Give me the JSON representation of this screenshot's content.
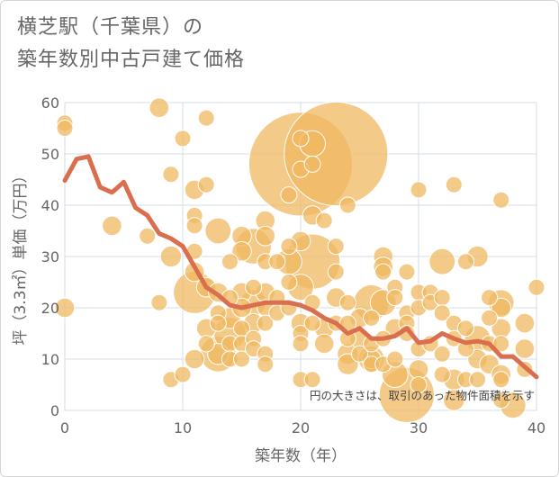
{
  "title_lines": [
    "横芝駅（千葉県）の",
    "築年数別中古戸建て価格"
  ],
  "colors": {
    "bubble_fill": "#F0B860",
    "bubble_stroke": "#ffffff",
    "line": "#D96F4E",
    "grid": "#d3dde6",
    "text": "#666666"
  },
  "chart_data": {
    "type": "scatter",
    "title": "横芝駅（千葉県）の築年数別中古戸建て価格",
    "xlabel": "築年数（年）",
    "ylabel": "坪（3.3㎡）単価（万円）",
    "xlim": [
      0,
      40
    ],
    "ylim": [
      0,
      60
    ],
    "xticks": [
      0,
      10,
      20,
      30,
      40
    ],
    "yticks": [
      0,
      10,
      20,
      30,
      40,
      50,
      60
    ],
    "grid": true,
    "note": "円の大きさは、取引のあった物件面積を示す",
    "bubbles": [
      {
        "x": 0,
        "y": 56,
        "s": 1
      },
      {
        "x": 0,
        "y": 55,
        "s": 1
      },
      {
        "x": 0,
        "y": 20,
        "s": 1.2
      },
      {
        "x": 4,
        "y": 36,
        "s": 1.2
      },
      {
        "x": 7,
        "y": 34,
        "s": 1
      },
      {
        "x": 8,
        "y": 59,
        "s": 1.2
      },
      {
        "x": 8,
        "y": 21,
        "s": 1
      },
      {
        "x": 9,
        "y": 46,
        "s": 1
      },
      {
        "x": 9,
        "y": 30,
        "s": 1.3
      },
      {
        "x": 9,
        "y": 6,
        "s": 1
      },
      {
        "x": 10,
        "y": 53,
        "s": 1
      },
      {
        "x": 10,
        "y": 7,
        "s": 1
      },
      {
        "x": 11,
        "y": 43,
        "s": 1.2
      },
      {
        "x": 11,
        "y": 38,
        "s": 1
      },
      {
        "x": 11,
        "y": 36,
        "s": 1
      },
      {
        "x": 11,
        "y": 31,
        "s": 1
      },
      {
        "x": 11,
        "y": 27,
        "s": 1.2
      },
      {
        "x": 11,
        "y": 23,
        "s": 2.6
      },
      {
        "x": 11,
        "y": 10,
        "s": 1.2
      },
      {
        "x": 12,
        "y": 57,
        "s": 1
      },
      {
        "x": 12,
        "y": 44,
        "s": 1
      },
      {
        "x": 12,
        "y": 24,
        "s": 1.2
      },
      {
        "x": 12,
        "y": 16,
        "s": 1.2
      },
      {
        "x": 12,
        "y": 13,
        "s": 1
      },
      {
        "x": 13,
        "y": 35,
        "s": 1.6
      },
      {
        "x": 13,
        "y": 23,
        "s": 1.2
      },
      {
        "x": 13,
        "y": 19,
        "s": 1
      },
      {
        "x": 13,
        "y": 17,
        "s": 1
      },
      {
        "x": 13,
        "y": 11,
        "s": 2.2
      },
      {
        "x": 13,
        "y": 11,
        "s": 1.3
      },
      {
        "x": 14,
        "y": 29,
        "s": 1
      },
      {
        "x": 14,
        "y": 22,
        "s": 1
      },
      {
        "x": 14,
        "y": 18,
        "s": 1.3
      },
      {
        "x": 14,
        "y": 15,
        "s": 2
      },
      {
        "x": 14,
        "y": 13,
        "s": 1
      },
      {
        "x": 14,
        "y": 10,
        "s": 1
      },
      {
        "x": 15,
        "y": 34,
        "s": 1.2
      },
      {
        "x": 15,
        "y": 31,
        "s": 1.2
      },
      {
        "x": 15,
        "y": 23,
        "s": 1.2
      },
      {
        "x": 15,
        "y": 20,
        "s": 1.2
      },
      {
        "x": 15,
        "y": 16,
        "s": 1
      },
      {
        "x": 15,
        "y": 13,
        "s": 1
      },
      {
        "x": 15,
        "y": 10,
        "s": 1
      },
      {
        "x": 16,
        "y": 32,
        "s": 2.2
      },
      {
        "x": 16,
        "y": 24,
        "s": 1
      },
      {
        "x": 16,
        "y": 21,
        "s": 1.6
      },
      {
        "x": 16,
        "y": 17,
        "s": 1.2
      },
      {
        "x": 16,
        "y": 14,
        "s": 1
      },
      {
        "x": 16,
        "y": 12,
        "s": 1
      },
      {
        "x": 17,
        "y": 37,
        "s": 1.2
      },
      {
        "x": 17,
        "y": 34,
        "s": 1.2
      },
      {
        "x": 17,
        "y": 29,
        "s": 1
      },
      {
        "x": 17,
        "y": 23,
        "s": 1.2
      },
      {
        "x": 17,
        "y": 20,
        "s": 1
      },
      {
        "x": 17,
        "y": 17,
        "s": 1
      },
      {
        "x": 17,
        "y": 11,
        "s": 1
      },
      {
        "x": 17,
        "y": 9,
        "s": 1
      },
      {
        "x": 18,
        "y": 29,
        "s": 1
      },
      {
        "x": 18,
        "y": 22,
        "s": 1
      },
      {
        "x": 18,
        "y": 19,
        "s": 1
      },
      {
        "x": 19,
        "y": 42,
        "s": 1
      },
      {
        "x": 19,
        "y": 32,
        "s": 1
      },
      {
        "x": 19,
        "y": 29,
        "s": 1.6
      },
      {
        "x": 19,
        "y": 25,
        "s": 1
      },
      {
        "x": 19,
        "y": 20,
        "s": 1
      },
      {
        "x": 20,
        "y": 53,
        "s": 1
      },
      {
        "x": 20,
        "y": 48,
        "s": 6.4
      },
      {
        "x": 20,
        "y": 47,
        "s": 1
      },
      {
        "x": 20,
        "y": 33,
        "s": 1.2
      },
      {
        "x": 20,
        "y": 24,
        "s": 1.6
      },
      {
        "x": 20,
        "y": 17,
        "s": 1.2
      },
      {
        "x": 20,
        "y": 15,
        "s": 1
      },
      {
        "x": 20,
        "y": 13,
        "s": 1
      },
      {
        "x": 20,
        "y": 6,
        "s": 1
      },
      {
        "x": 21,
        "y": 52,
        "s": 1.6
      },
      {
        "x": 21,
        "y": 48,
        "s": 1
      },
      {
        "x": 21,
        "y": 38,
        "s": 1.2
      },
      {
        "x": 21,
        "y": 29,
        "s": 3.4
      },
      {
        "x": 21,
        "y": 21,
        "s": 1
      },
      {
        "x": 21,
        "y": 17,
        "s": 1
      },
      {
        "x": 21,
        "y": 6,
        "s": 1
      },
      {
        "x": 22,
        "y": 37,
        "s": 1
      },
      {
        "x": 22,
        "y": 16,
        "s": 1.2
      },
      {
        "x": 22,
        "y": 13,
        "s": 1.2
      },
      {
        "x": 23,
        "y": 50,
        "s": 6.4
      },
      {
        "x": 23,
        "y": 32,
        "s": 1
      },
      {
        "x": 23,
        "y": 27,
        "s": 1
      },
      {
        "x": 23,
        "y": 22,
        "s": 1.2
      },
      {
        "x": 23,
        "y": 17,
        "s": 1
      },
      {
        "x": 24,
        "y": 40,
        "s": 1
      },
      {
        "x": 24,
        "y": 21,
        "s": 1
      },
      {
        "x": 24,
        "y": 17,
        "s": 1
      },
      {
        "x": 24,
        "y": 14,
        "s": 1
      },
      {
        "x": 24,
        "y": 11,
        "s": 1.3
      },
      {
        "x": 24,
        "y": 9,
        "s": 1.3
      },
      {
        "x": 25,
        "y": 18,
        "s": 1.2
      },
      {
        "x": 25,
        "y": 14,
        "s": 1.2
      },
      {
        "x": 25,
        "y": 11,
        "s": 1
      },
      {
        "x": 26,
        "y": 21,
        "s": 2.2
      },
      {
        "x": 26,
        "y": 18,
        "s": 1
      },
      {
        "x": 26,
        "y": 13,
        "s": 1
      },
      {
        "x": 26,
        "y": 10,
        "s": 1.6
      },
      {
        "x": 26,
        "y": 10,
        "s": 1.2
      },
      {
        "x": 26,
        "y": 9,
        "s": 1
      },
      {
        "x": 27,
        "y": 30,
        "s": 1.2
      },
      {
        "x": 27,
        "y": 28,
        "s": 1.2
      },
      {
        "x": 27,
        "y": 27,
        "s": 1
      },
      {
        "x": 27,
        "y": 21,
        "s": 1.6
      },
      {
        "x": 27,
        "y": 14,
        "s": 1
      },
      {
        "x": 27,
        "y": 9,
        "s": 1
      },
      {
        "x": 28,
        "y": 24,
        "s": 1
      },
      {
        "x": 28,
        "y": 22,
        "s": 1
      },
      {
        "x": 28,
        "y": 16,
        "s": 1.2
      },
      {
        "x": 28,
        "y": 10,
        "s": 1
      },
      {
        "x": 28,
        "y": 7,
        "s": 1.6
      },
      {
        "x": 29,
        "y": 27,
        "s": 1
      },
      {
        "x": 29,
        "y": 19,
        "s": 1
      },
      {
        "x": 29,
        "y": 17,
        "s": 1
      },
      {
        "x": 29,
        "y": 15,
        "s": 1
      },
      {
        "x": 29,
        "y": 3,
        "s": 3.4
      },
      {
        "x": 30,
        "y": 43,
        "s": 1
      },
      {
        "x": 30,
        "y": 23,
        "s": 1
      },
      {
        "x": 30,
        "y": 20,
        "s": 1
      },
      {
        "x": 30,
        "y": 12,
        "s": 1
      },
      {
        "x": 30,
        "y": 8,
        "s": 1.2
      },
      {
        "x": 30,
        "y": 5,
        "s": 1
      },
      {
        "x": 31,
        "y": 23,
        "s": 1
      },
      {
        "x": 31,
        "y": 21,
        "s": 1
      },
      {
        "x": 31,
        "y": 13,
        "s": 1
      },
      {
        "x": 32,
        "y": 29,
        "s": 1.6
      },
      {
        "x": 32,
        "y": 22,
        "s": 1
      },
      {
        "x": 32,
        "y": 19,
        "s": 1
      },
      {
        "x": 32,
        "y": 11,
        "s": 1
      },
      {
        "x": 32,
        "y": 7,
        "s": 1
      },
      {
        "x": 33,
        "y": 44,
        "s": 1
      },
      {
        "x": 33,
        "y": 17,
        "s": 1
      },
      {
        "x": 33,
        "y": 14,
        "s": 1
      },
      {
        "x": 33,
        "y": 6,
        "s": 1.3
      },
      {
        "x": 33,
        "y": 2,
        "s": 1.3
      },
      {
        "x": 34,
        "y": 29,
        "s": 1
      },
      {
        "x": 34,
        "y": 16,
        "s": 1
      },
      {
        "x": 34,
        "y": 12,
        "s": 1
      },
      {
        "x": 34,
        "y": 6,
        "s": 1
      },
      {
        "x": 35,
        "y": 30,
        "s": 1.3
      },
      {
        "x": 35,
        "y": 14,
        "s": 1.6
      },
      {
        "x": 35,
        "y": 10,
        "s": 1.2
      },
      {
        "x": 35,
        "y": 6,
        "s": 1
      },
      {
        "x": 36,
        "y": 22,
        "s": 1
      },
      {
        "x": 36,
        "y": 18,
        "s": 1
      },
      {
        "x": 36,
        "y": 13,
        "s": 1
      },
      {
        "x": 36,
        "y": 9,
        "s": 1.2
      },
      {
        "x": 37,
        "y": 41,
        "s": 1
      },
      {
        "x": 37,
        "y": 21,
        "s": 1.6
      },
      {
        "x": 37,
        "y": 20,
        "s": 1.2
      },
      {
        "x": 37,
        "y": 16,
        "s": 1.2
      },
      {
        "x": 37,
        "y": 13,
        "s": 1
      },
      {
        "x": 37,
        "y": 7,
        "s": 1.2
      },
      {
        "x": 37,
        "y": 6,
        "s": 1
      },
      {
        "x": 37,
        "y": 2,
        "s": 1
      },
      {
        "x": 38,
        "y": 1,
        "s": 1.6
      },
      {
        "x": 39,
        "y": 17,
        "s": 1.2
      },
      {
        "x": 39,
        "y": 12,
        "s": 1.2
      },
      {
        "x": 39,
        "y": 8,
        "s": 1
      },
      {
        "x": 40,
        "y": 24,
        "s": 1
      }
    ],
    "line": {
      "x": [
        0,
        1,
        2,
        3,
        4,
        5,
        6,
        7,
        8,
        9,
        10,
        11,
        12,
        13,
        14,
        15,
        16,
        17,
        18,
        19,
        20,
        21,
        22,
        23,
        24,
        25,
        26,
        27,
        28,
        29,
        30,
        31,
        32,
        33,
        34,
        35,
        36,
        37,
        38,
        39,
        40
      ],
      "y": [
        44.8,
        49.0,
        49.5,
        43.5,
        42.5,
        44.5,
        39.5,
        38.0,
        34.5,
        33.5,
        32.0,
        28.0,
        24.0,
        22.5,
        20.5,
        20.0,
        20.5,
        21.0,
        21.0,
        21.0,
        20.5,
        19.5,
        18.0,
        17.0,
        15.0,
        16.0,
        14.0,
        14.0,
        14.5,
        16.0,
        13.2,
        13.5,
        15.0,
        14.0,
        13.2,
        13.5,
        13.0,
        10.5,
        10.5,
        8.5,
        6.5
      ]
    }
  }
}
